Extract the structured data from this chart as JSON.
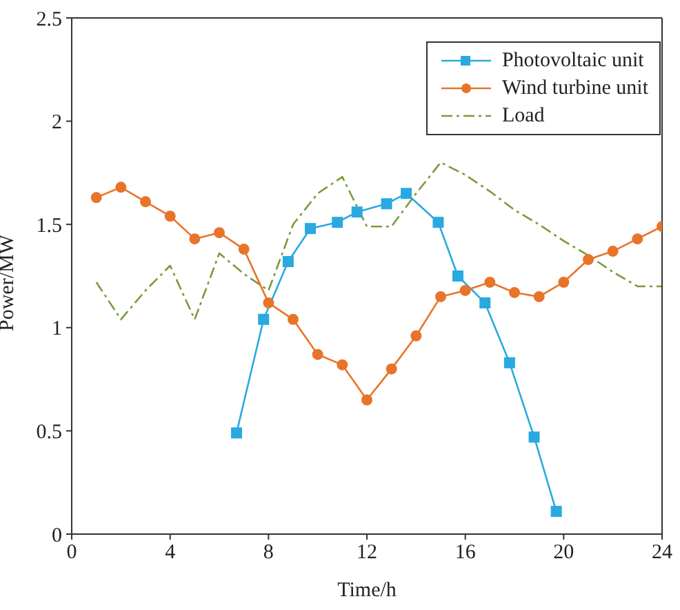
{
  "chart_data": {
    "type": "line",
    "xlabel": "Time/h",
    "ylabel": "Power/MW",
    "xlim": [
      0,
      24
    ],
    "xticks": [
      0,
      4,
      8,
      12,
      16,
      20,
      24
    ],
    "ylim": [
      0,
      2.5
    ],
    "yticks": [
      0,
      0.5,
      1,
      1.5,
      2,
      2.5
    ],
    "legend": "top right",
    "series": [
      {
        "name": "Photovoltaic unit",
        "color": "#2aa9e0",
        "marker": "square",
        "x": [
          6.7,
          7.8,
          8.8,
          9.7,
          10.8,
          11.6,
          12.8,
          13.6,
          14.9,
          15.7,
          16.8,
          17.8,
          18.8,
          19.7
        ],
        "values": [
          0.49,
          1.04,
          1.32,
          1.48,
          1.51,
          1.56,
          1.6,
          1.65,
          1.51,
          1.25,
          1.12,
          0.83,
          0.47,
          0.11
        ]
      },
      {
        "name": "Wind turbine unit",
        "color": "#e8742a",
        "marker": "circle",
        "x": [
          1,
          2,
          3,
          4,
          5,
          6,
          7,
          8,
          9,
          10,
          11,
          12,
          13,
          14,
          15,
          16,
          17,
          18,
          19,
          20,
          21,
          22,
          23,
          24
        ],
        "values": [
          1.63,
          1.68,
          1.61,
          1.54,
          1.43,
          1.46,
          1.38,
          1.12,
          1.04,
          0.87,
          0.82,
          0.65,
          0.8,
          0.96,
          1.15,
          1.18,
          1.22,
          1.17,
          1.15,
          1.22,
          1.33,
          1.37,
          1.43,
          1.49
        ]
      },
      {
        "name": "Load",
        "color": "#7a9a3c",
        "marker": "none",
        "line_style": "dashed",
        "x": [
          1,
          2,
          3,
          4,
          5,
          6,
          7,
          8,
          9,
          10,
          11,
          12,
          13,
          14,
          15,
          16,
          17,
          18,
          19,
          20,
          21,
          22,
          23,
          24
        ],
        "values": [
          1.22,
          1.04,
          1.18,
          1.3,
          1.04,
          1.36,
          1.26,
          1.18,
          1.5,
          1.65,
          1.73,
          1.49,
          1.49,
          1.65,
          1.8,
          1.74,
          1.66,
          1.57,
          1.5,
          1.42,
          1.35,
          1.27,
          1.2,
          1.2
        ]
      }
    ]
  }
}
